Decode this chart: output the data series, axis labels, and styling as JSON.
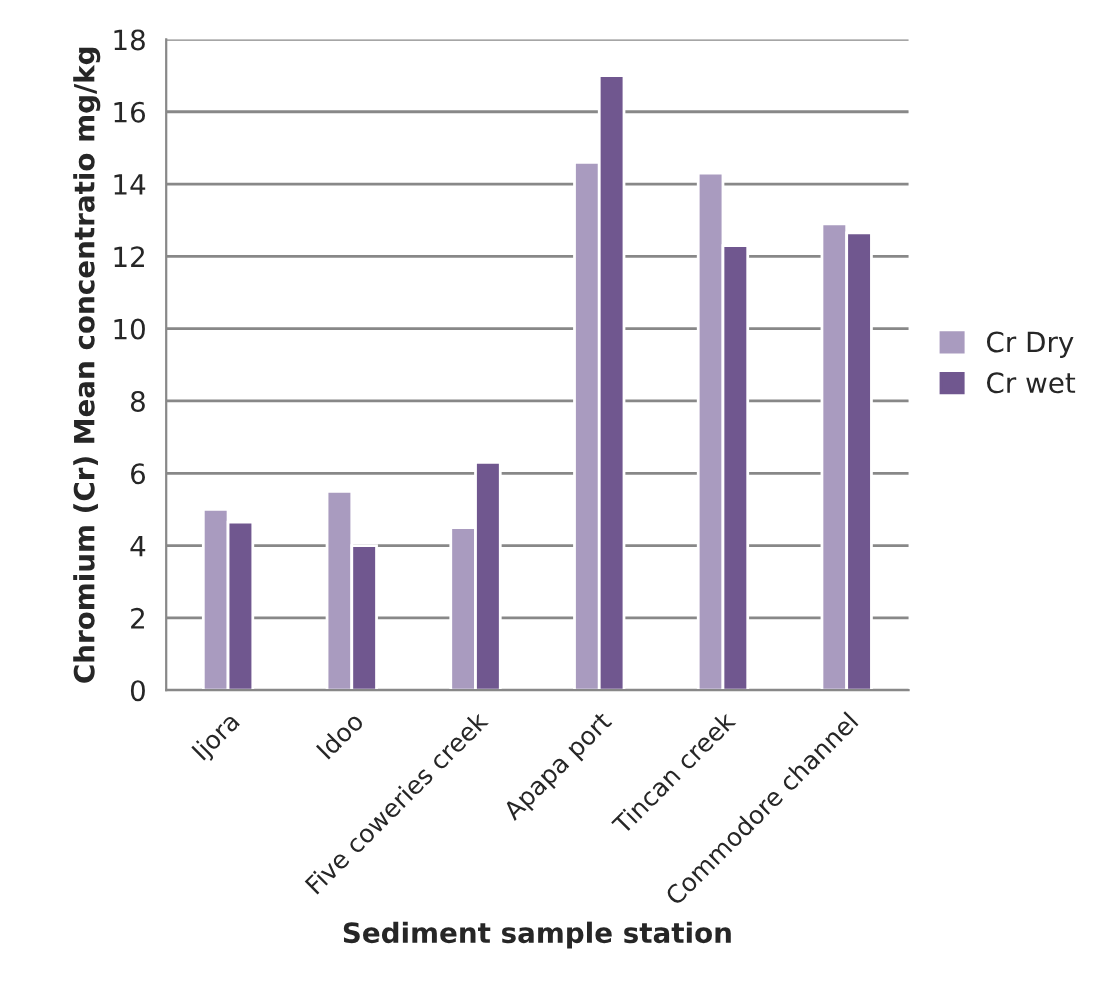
{
  "chart_data": {
    "type": "bar",
    "xlabel": "Sediment sample station",
    "ylabel": "Chromium (Cr) Mean concentratio mg/kg",
    "categories": [
      "Ijora",
      "Idoo",
      "Five coweries creek",
      "Apapa port",
      "Tincan creek",
      "Commodore channel"
    ],
    "series": [
      {
        "name": "Cr Dry",
        "color": "#a99bbf",
        "values": [
          5.0,
          5.5,
          4.5,
          14.6,
          14.3,
          12.9
        ]
      },
      {
        "name": "Cr wet",
        "color": "#70578f",
        "values": [
          4.65,
          4.0,
          6.3,
          17.0,
          12.3,
          12.65
        ]
      }
    ],
    "ylim": [
      0,
      18
    ],
    "yticks": [
      0,
      2,
      4,
      6,
      8,
      10,
      12,
      14,
      16,
      18
    ],
    "grid": "y",
    "legend": "right"
  }
}
